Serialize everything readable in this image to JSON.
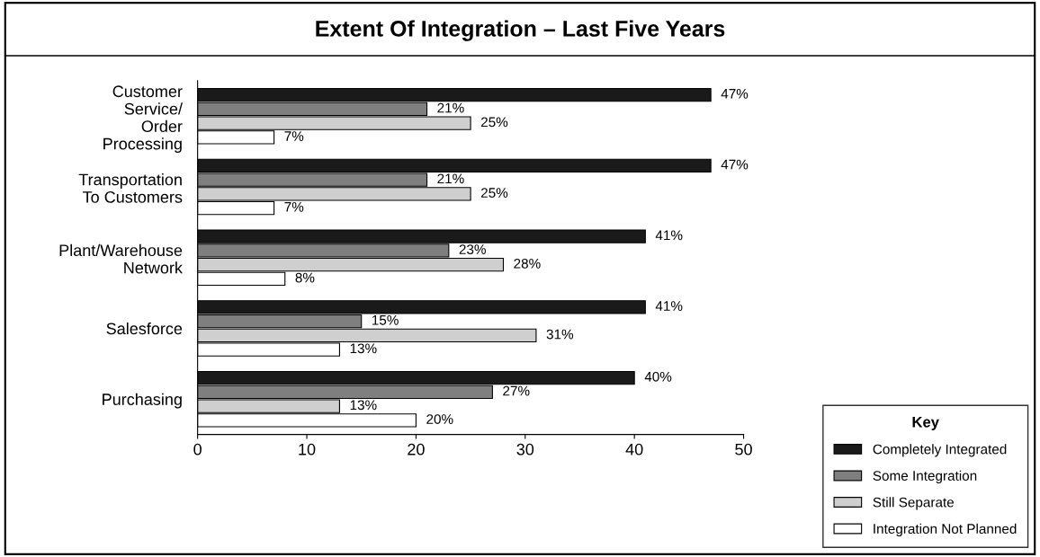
{
  "chart_data": {
    "type": "bar",
    "orientation": "horizontal",
    "title": "Extent Of Integration – Last Five Years",
    "categories": [
      "Customer\nService/\nOrder\nProcessing",
      "Transportation\nTo Customers",
      "Plant/Warehouse\nNetwork",
      "Salesforce",
      "Purchasing"
    ],
    "series": [
      {
        "name": "Completely Integrated",
        "color": "#1a1a1a",
        "values": [
          47,
          47,
          41,
          41,
          40
        ],
        "value_labels": [
          "47%",
          "47%",
          "41%",
          "41%",
          "40%"
        ]
      },
      {
        "name": "Some Integration",
        "color": "#7f7f7f",
        "values": [
          21,
          21,
          23,
          15,
          27
        ],
        "value_labels": [
          "21%",
          "21%",
          "23%",
          "15%",
          "27%"
        ]
      },
      {
        "name": "Still Separate",
        "color": "#cfcfcf",
        "values": [
          25,
          25,
          28,
          31,
          13
        ],
        "value_labels": [
          "25%",
          "25%",
          "28%",
          "31%",
          "13%"
        ]
      },
      {
        "name": "Integration Not Planned",
        "color": "#ffffff",
        "values": [
          7,
          7,
          8,
          13,
          20
        ],
        "value_labels": [
          "7%",
          "7%",
          "8%",
          "13%",
          "20%"
        ]
      }
    ],
    "xlim": [
      0,
      50
    ],
    "xticks": [
      0,
      10,
      20,
      30,
      40,
      50
    ],
    "legend": "bottom right",
    "legend_title": "Key",
    "grid": false
  }
}
